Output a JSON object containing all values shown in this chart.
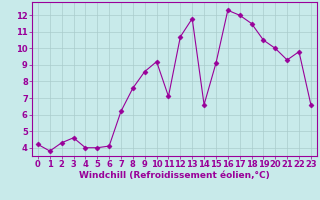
{
  "x": [
    0,
    1,
    2,
    3,
    4,
    5,
    6,
    7,
    8,
    9,
    10,
    11,
    12,
    13,
    14,
    15,
    16,
    17,
    18,
    19,
    20,
    21,
    22,
    23
  ],
  "y": [
    4.2,
    3.8,
    4.3,
    4.6,
    4.0,
    4.0,
    4.1,
    6.2,
    7.6,
    8.6,
    9.2,
    7.1,
    10.7,
    11.8,
    6.6,
    9.1,
    12.3,
    12.0,
    11.5,
    10.5,
    10.0,
    9.3,
    9.8,
    6.6
  ],
  "line_color": "#990099",
  "marker": "D",
  "marker_size": 2.5,
  "bg_color": "#c8eaea",
  "grid_color": "#aacccc",
  "xlabel": "Windchill (Refroidissement éolien,°C)",
  "ylim": [
    3.5,
    12.8
  ],
  "xlim": [
    -0.5,
    23.5
  ],
  "yticks": [
    4,
    5,
    6,
    7,
    8,
    9,
    10,
    11,
    12
  ],
  "xticks": [
    0,
    1,
    2,
    3,
    4,
    5,
    6,
    7,
    8,
    9,
    10,
    11,
    12,
    13,
    14,
    15,
    16,
    17,
    18,
    19,
    20,
    21,
    22,
    23
  ],
  "xlabel_fontsize": 6.5,
  "tick_fontsize": 6
}
